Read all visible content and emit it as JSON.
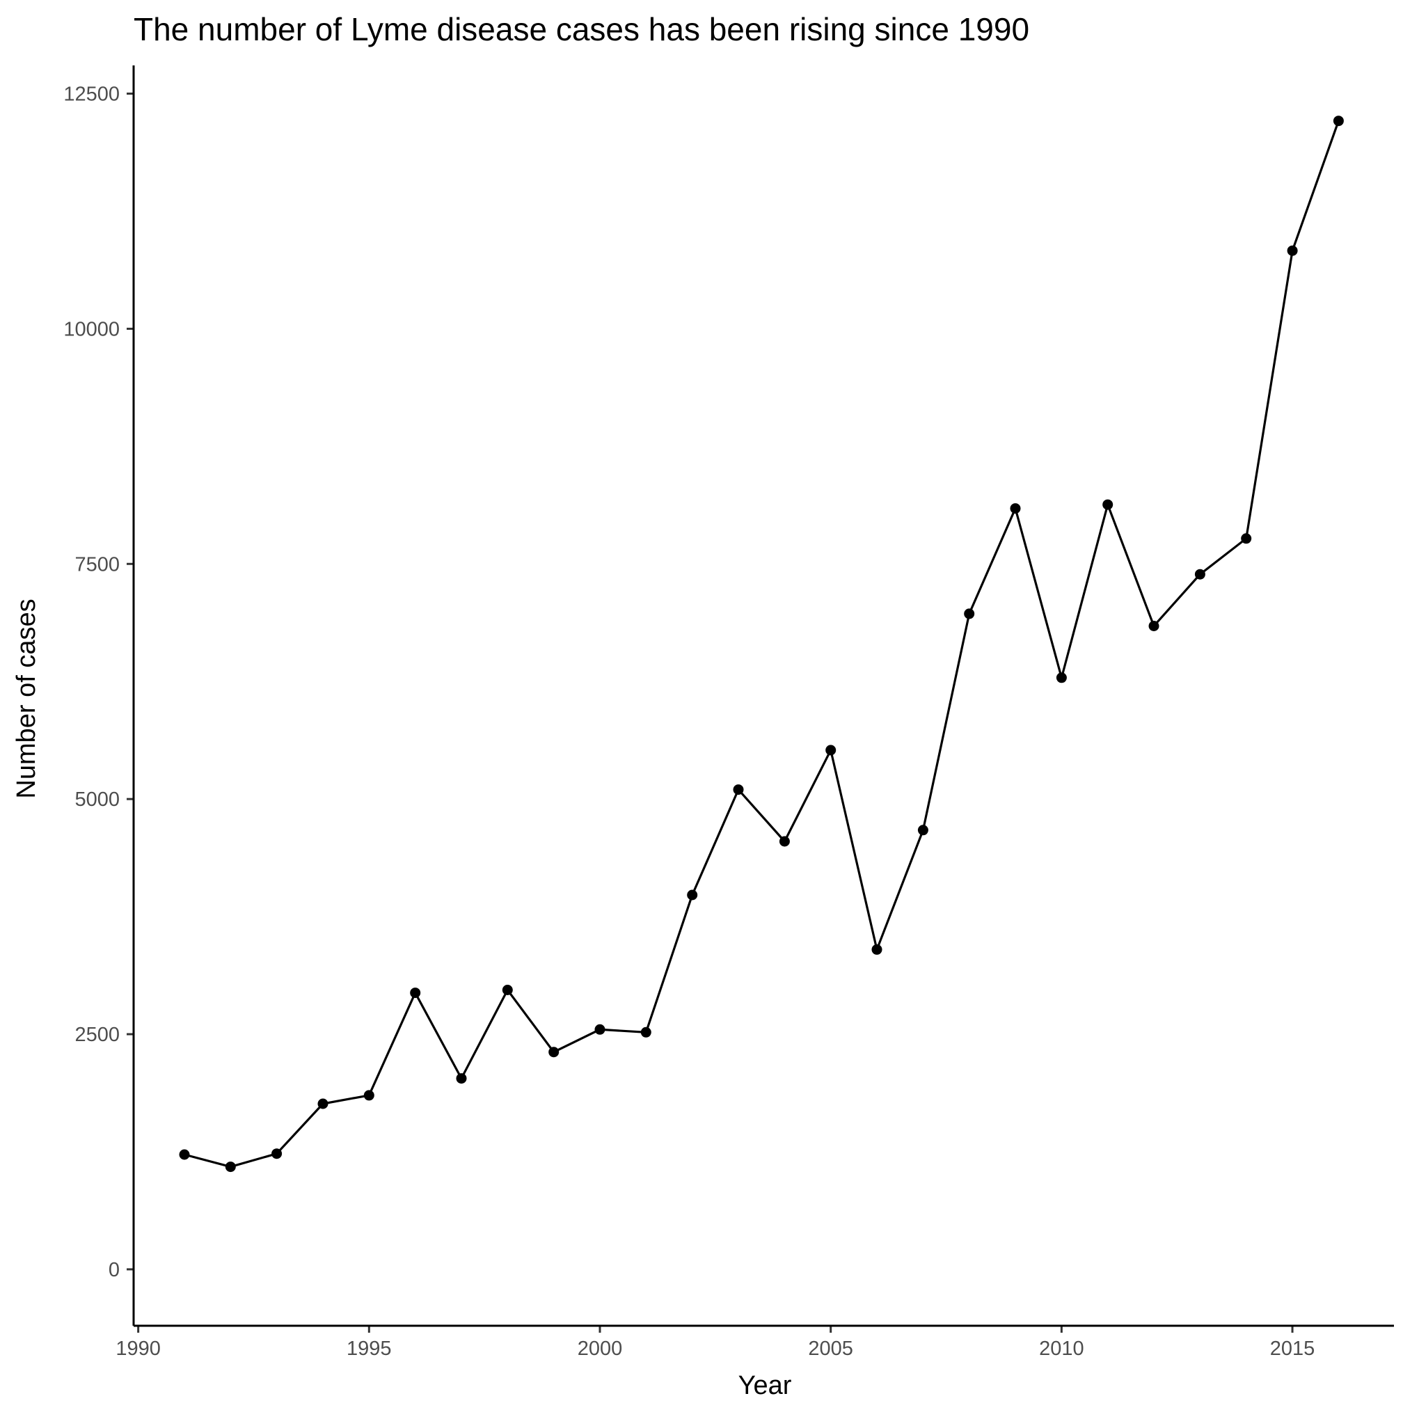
{
  "chart_data": {
    "type": "line",
    "title": "The number of Lyme disease cases has been rising since 1990",
    "xlabel": "Year",
    "ylabel": "Number of cases",
    "xlim": [
      1989.9,
      2017.2
    ],
    "ylim": [
      -600,
      12800
    ],
    "xticks": [
      1990,
      1995,
      2000,
      2005,
      2010,
      2015
    ],
    "yticks": [
      0,
      2500,
      5000,
      7500,
      10000,
      12500
    ],
    "grid": false,
    "legend": "none",
    "line_color": "#000000",
    "series": [
      {
        "x": [
          1991,
          1992,
          1993,
          1994,
          1995,
          1996,
          1997,
          1998,
          1999,
          2000,
          2001,
          2002,
          2003,
          2004,
          2005,
          2006,
          2007,
          2008,
          2009,
          2010,
          2011,
          2012,
          2013,
          2014,
          2015,
          2016
        ],
        "values": [
          1220,
          1090,
          1230,
          1760,
          1850,
          2940,
          2030,
          2970,
          2310,
          2550,
          2520,
          3980,
          5100,
          4550,
          5520,
          3400,
          4670,
          6970,
          8090,
          6290,
          8130,
          6840,
          7390,
          7770,
          10830,
          12210
        ]
      }
    ]
  }
}
